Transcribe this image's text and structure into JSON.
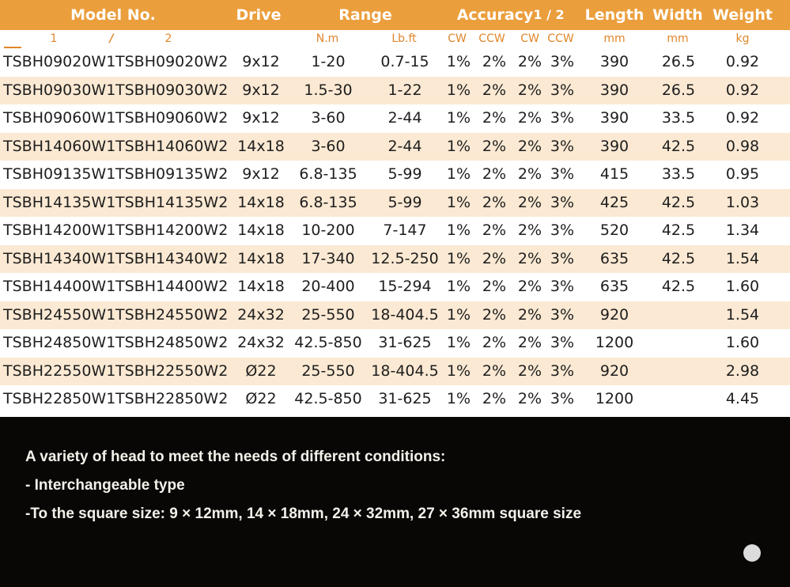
{
  "table": {
    "headers": {
      "model_no": "Model No.",
      "drive": "Drive",
      "range": "Range",
      "accuracy": "Accuracy",
      "accuracy_sub": "1 / 2",
      "length": "Length",
      "width": "Width",
      "weight": "Weight"
    },
    "units": {
      "model_1": "1",
      "model_sep": "/",
      "model_2": "2",
      "range_nm": "N.m",
      "range_lbft": "Lb.ft",
      "acc_cw_1": "CW",
      "acc_ccw_1": "CCW",
      "acc_cw_2": "CW",
      "acc_ccw_2": "CCW",
      "length": "mm",
      "width": "mm",
      "weight": "kg"
    },
    "rows": [
      {
        "m1": "TSBH09020W1",
        "m2": "TSBH09020W2",
        "drive": "9x12",
        "nm": "1-20",
        "lbft": "0.7-15",
        "cw1": "1%",
        "ccw1": "2%",
        "cw2": "2%",
        "ccw2": "3%",
        "length": "390",
        "width": "26.5",
        "weight": "0.92"
      },
      {
        "m1": "TSBH09030W1",
        "m2": "TSBH09030W2",
        "drive": "9x12",
        "nm": "1.5-30",
        "lbft": "1-22",
        "cw1": "1%",
        "ccw1": "2%",
        "cw2": "2%",
        "ccw2": "3%",
        "length": "390",
        "width": "26.5",
        "weight": "0.92"
      },
      {
        "m1": "TSBH09060W1",
        "m2": "TSBH09060W2",
        "drive": "9x12",
        "nm": "3-60",
        "lbft": "2-44",
        "cw1": "1%",
        "ccw1": "2%",
        "cw2": "2%",
        "ccw2": "3%",
        "length": "390",
        "width": "33.5",
        "weight": "0.92"
      },
      {
        "m1": "TSBH14060W1",
        "m2": "TSBH14060W2",
        "drive": "14x18",
        "nm": "3-60",
        "lbft": "2-44",
        "cw1": "1%",
        "ccw1": "2%",
        "cw2": "2%",
        "ccw2": "3%",
        "length": "390",
        "width": "42.5",
        "weight": "0.98"
      },
      {
        "m1": "TSBH09135W1",
        "m2": "TSBH09135W2",
        "drive": "9x12",
        "nm": "6.8-135",
        "lbft": "5-99",
        "cw1": "1%",
        "ccw1": "2%",
        "cw2": "2%",
        "ccw2": "3%",
        "length": "415",
        "width": "33.5",
        "weight": "0.95"
      },
      {
        "m1": "TSBH14135W1",
        "m2": "TSBH14135W2",
        "drive": "14x18",
        "nm": "6.8-135",
        "lbft": "5-99",
        "cw1": "1%",
        "ccw1": "2%",
        "cw2": "2%",
        "ccw2": "3%",
        "length": "425",
        "width": "42.5",
        "weight": "1.03"
      },
      {
        "m1": "TSBH14200W1",
        "m2": "TSBH14200W2",
        "drive": "14x18",
        "nm": "10-200",
        "lbft": "7-147",
        "cw1": "1%",
        "ccw1": "2%",
        "cw2": "2%",
        "ccw2": "3%",
        "length": "520",
        "width": "42.5",
        "weight": "1.34"
      },
      {
        "m1": "TSBH14340W1",
        "m2": "TSBH14340W2",
        "drive": "14x18",
        "nm": "17-340",
        "lbft": "12.5-250",
        "cw1": "1%",
        "ccw1": "2%",
        "cw2": "2%",
        "ccw2": "3%",
        "length": "635",
        "width": "42.5",
        "weight": "1.54"
      },
      {
        "m1": "TSBH14400W1",
        "m2": "TSBH14400W2",
        "drive": "14x18",
        "nm": "20-400",
        "lbft": "15-294",
        "cw1": "1%",
        "ccw1": "2%",
        "cw2": "2%",
        "ccw2": "3%",
        "length": "635",
        "width": "42.5",
        "weight": "1.60"
      },
      {
        "m1": "TSBH24550W1",
        "m2": "TSBH24550W2",
        "drive": "24x32",
        "nm": "25-550",
        "lbft": "18-404.5",
        "cw1": "1%",
        "ccw1": "2%",
        "cw2": "2%",
        "ccw2": "3%",
        "length": "920",
        "width": "",
        "weight": "1.54"
      },
      {
        "m1": "TSBH24850W1",
        "m2": "TSBH24850W2",
        "drive": "24x32",
        "nm": "42.5-850",
        "lbft": "31-625",
        "cw1": "1%",
        "ccw1": "2%",
        "cw2": "2%",
        "ccw2": "3%",
        "length": "1200",
        "width": "",
        "weight": "1.60"
      },
      {
        "m1": "TSBH22550W1",
        "m2": "TSBH22550W2",
        "drive": "Ø22",
        "nm": "25-550",
        "lbft": "18-404.5",
        "cw1": "1%",
        "ccw1": "2%",
        "cw2": "2%",
        "ccw2": "3%",
        "length": "920",
        "width": "",
        "weight": "2.98"
      },
      {
        "m1": "TSBH22850W1",
        "m2": "TSBH22850W2",
        "drive": "Ø22",
        "nm": "42.5-850",
        "lbft": "31-625",
        "cw1": "1%",
        "ccw1": "2%",
        "cw2": "2%",
        "ccw2": "3%",
        "length": "1200",
        "width": "",
        "weight": "4.45"
      }
    ]
  },
  "info": {
    "line1": "A variety of head to meet the needs of different conditions:",
    "line2": "- Interchangeable type",
    "line3": "-To the square size: 9 × 12mm, 14 × 18mm, 24 × 32mm, 27 × 36mm square size"
  },
  "colors": {
    "header_bg": "#eb9e3c",
    "unit_text": "#e0862a",
    "stripe_bg": "#fbe9d3",
    "panel_bg": "#080706"
  }
}
